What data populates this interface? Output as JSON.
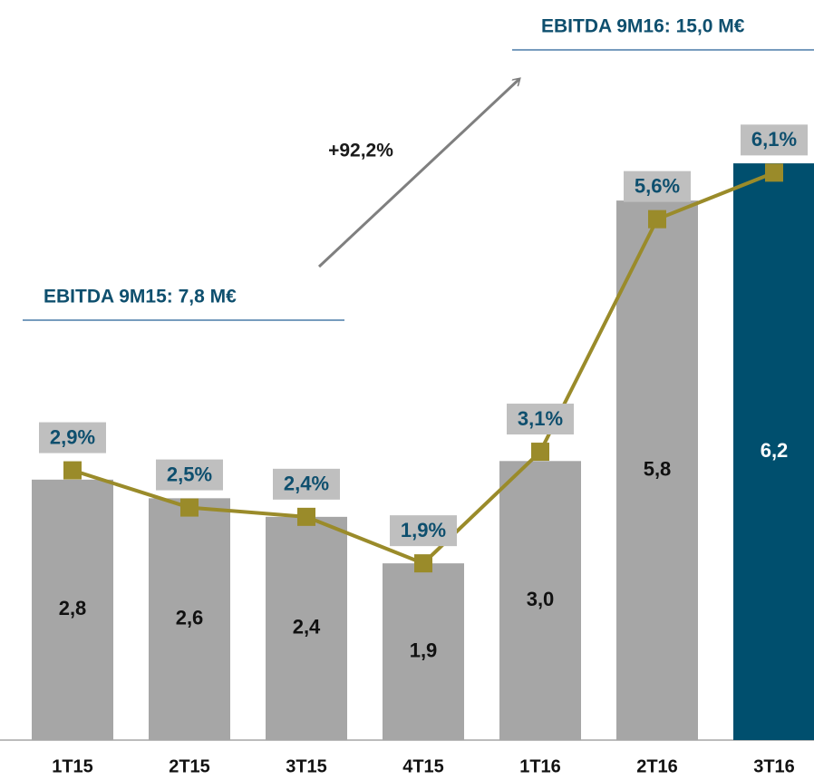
{
  "chart_data": {
    "type": "bar",
    "categories": [
      "1T15",
      "2T15",
      "3T15",
      "4T15",
      "1T16",
      "2T16",
      "3T16"
    ],
    "series": [
      {
        "type": "bar",
        "values": [
          2.8,
          2.6,
          2.4,
          1.9,
          3.0,
          5.8,
          6.2
        ],
        "value_labels": [
          "2,8",
          "2,6",
          "2,4",
          "1,9",
          "3,0",
          "5,8",
          "6,2"
        ],
        "colors": [
          "#a6a6a6",
          "#a6a6a6",
          "#a6a6a6",
          "#a6a6a6",
          "#a6a6a6",
          "#a6a6a6",
          "#004f6e"
        ]
      },
      {
        "type": "line",
        "axis": "y2",
        "values": [
          2.9,
          2.5,
          2.4,
          1.9,
          3.1,
          5.6,
          6.1
        ],
        "value_labels": [
          "2,9%",
          "2,5%",
          "2,4%",
          "1,9%",
          "3,1%",
          "5,6%",
          "6,1%"
        ],
        "color": "#9a8b2a"
      }
    ],
    "ylim": [
      0,
      7.8
    ],
    "y2lim": [
      0,
      7.8
    ],
    "annotations": [
      "EBITDA 9M15: 7,8 M€",
      "EBITDA 9M16: 15,0 M€",
      "+92,2%"
    ]
  }
}
